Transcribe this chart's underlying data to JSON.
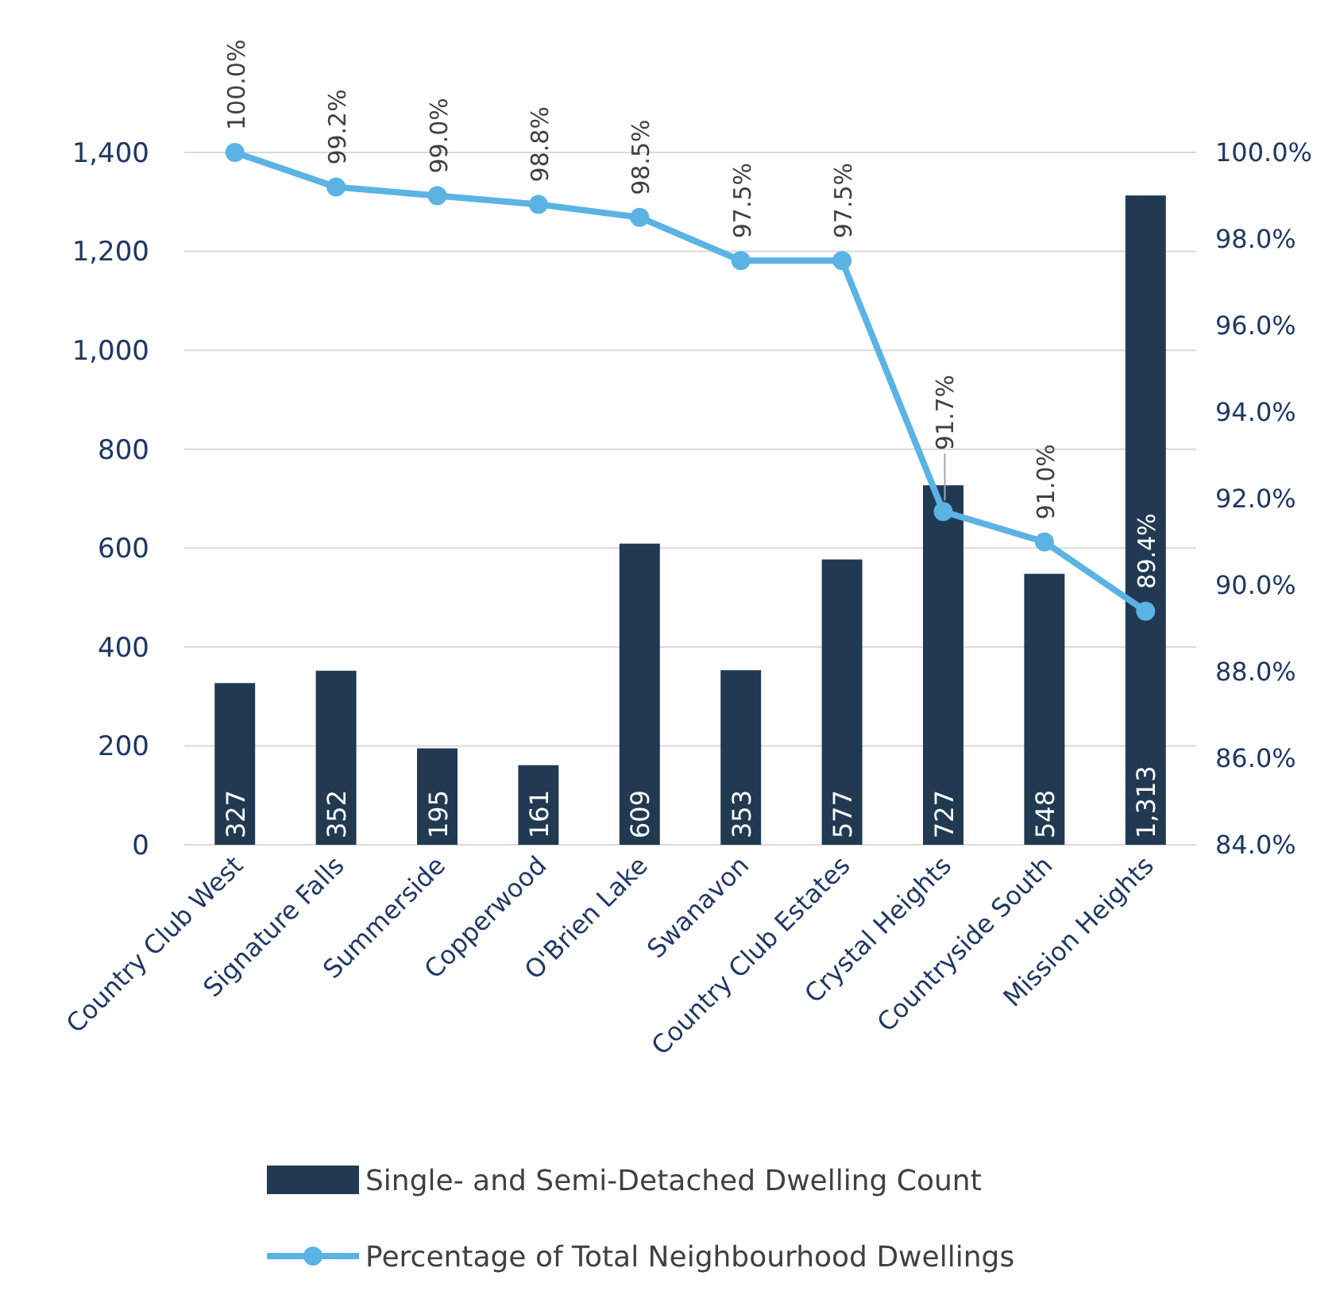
{
  "chart_data": {
    "type": "bar",
    "categories": [
      "Country Club West",
      "Signature Falls",
      "Summerside",
      "Copperwood",
      "O'Brien Lake",
      "Swanavon",
      "Country Club Estates",
      "Crystal Heights",
      "Countryside South",
      "Mission Heights"
    ],
    "series": [
      {
        "name": "Single- and Semi-Detached Dwelling Count",
        "color": "#213a52",
        "values": [
          327,
          352,
          195,
          161,
          609,
          353,
          577,
          727,
          548,
          1313
        ],
        "value_labels": [
          "327",
          "352",
          "195",
          "161",
          "609",
          "353",
          "577",
          "727",
          "548",
          "1,313"
        ]
      },
      {
        "name": "Percentage of Total Neighbourhood Dwellings",
        "type": "line",
        "axis": "y2",
        "color": "#5bb3e4",
        "values": [
          100.0,
          99.2,
          99.0,
          98.8,
          98.5,
          97.5,
          97.5,
          91.7,
          91.0,
          89.4
        ],
        "value_labels": [
          "100.0%",
          "99.2%",
          "99.0%",
          "98.8%",
          "98.5%",
          "97.5%",
          "97.5%",
          "91.7%",
          "91.0%",
          "89.4%"
        ]
      }
    ],
    "ylim": [
      0,
      1400
    ],
    "yticks": [
      0,
      200,
      400,
      600,
      800,
      {
        "value": 1000,
        "label": "1,000"
      },
      {
        "value": 1200,
        "label": "1,200"
      },
      {
        "value": 1400,
        "label": "1,400"
      }
    ],
    "y2lim": [
      84,
      100
    ],
    "y2ticks": [
      {
        "value": 84,
        "label": "84.0%"
      },
      {
        "value": 86,
        "label": "86.0%"
      },
      {
        "value": 88,
        "label": "88.0%"
      },
      {
        "value": 90,
        "label": "90.0%"
      },
      {
        "value": 92,
        "label": "92.0%"
      },
      {
        "value": 94,
        "label": "94.0%"
      },
      {
        "value": 96,
        "label": "96.0%"
      },
      {
        "value": 98,
        "label": "98.0%"
      },
      {
        "value": 100,
        "label": "100.0%"
      }
    ],
    "grid": "y",
    "legend": "bottom",
    "marker": "circle",
    "line_style": "solid"
  }
}
